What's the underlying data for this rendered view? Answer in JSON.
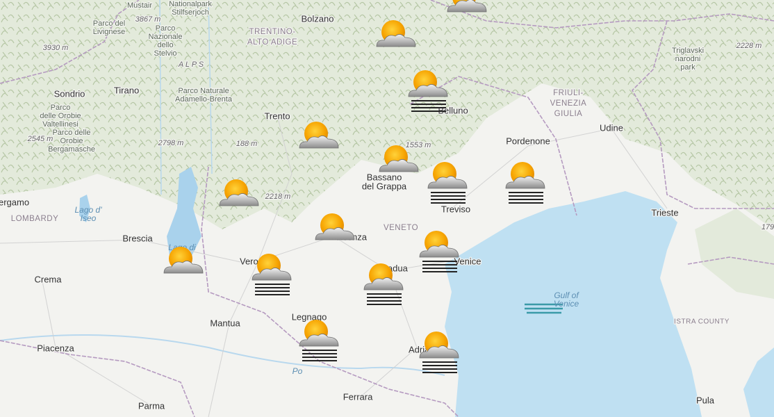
{
  "labels": [
    {
      "text": "Mustair"
    },
    {
      "lines": [
        "Nationalpark",
        "Stilfserjoch"
      ]
    },
    {
      "text": "3867 m"
    },
    {
      "lines": [
        "Parco del",
        "Livignese"
      ]
    },
    {
      "lines": [
        "Parco",
        "Nazionale",
        "dello",
        "Stelvio"
      ]
    },
    {
      "text": "Bolzano"
    },
    {
      "lines": [
        "TRENTINO-",
        "ALTO ADIGE"
      ]
    },
    {
      "text": "3930 m"
    },
    {
      "text": "A L P S"
    },
    {
      "text": "2228 m"
    },
    {
      "lines": [
        "Triglavski",
        "narodni",
        "park"
      ]
    },
    {
      "text": "Sondrio"
    },
    {
      "text": "Tirano"
    },
    {
      "lines": [
        "Parco Naturale",
        "Adamello-Brenta"
      ]
    },
    {
      "lines": [
        "FRIULI-",
        "VENEZIA",
        "GIULIA"
      ]
    },
    {
      "lines": [
        "Parco",
        "delle Orobie",
        "Valtellinesi"
      ]
    },
    {
      "text": "Trento"
    },
    {
      "text": "Belluno"
    },
    {
      "text": "Udine"
    },
    {
      "text": "2545 m"
    },
    {
      "lines": [
        "Parco delle",
        "Orobie",
        "Bergamasche"
      ]
    },
    {
      "text": "2798 m"
    },
    {
      "text": "188 m"
    },
    {
      "text": "1553 m"
    },
    {
      "text": "Pordenone"
    },
    {
      "lines": [
        "Bassano",
        "del Grappa"
      ]
    },
    {
      "text": "2218 m"
    },
    {
      "text": "ergamo"
    },
    {
      "lines": [
        "Lago d'",
        "Iseo"
      ]
    },
    {
      "text": "LOMBARDY"
    },
    {
      "text": "Treviso"
    },
    {
      "text": "Trieste"
    },
    {
      "text": "VENETO"
    },
    {
      "text": "Brescia"
    },
    {
      "text": "Lago di"
    },
    {
      "text": "Vicenza"
    },
    {
      "text": "Venice"
    },
    {
      "text": "179"
    },
    {
      "text": "Verona"
    },
    {
      "text": "Padua"
    },
    {
      "text": "Crema"
    },
    {
      "lines": [
        "Gulf of",
        "Venice"
      ]
    },
    {
      "text": "ISTRA COUNTY"
    },
    {
      "text": "Mantua"
    },
    {
      "text": "Legnago"
    },
    {
      "text": "Piacenza"
    },
    {
      "text": "Po"
    },
    {
      "text": "Parma"
    },
    {
      "text": "Ferrara"
    },
    {
      "text": "Adria"
    },
    {
      "text": "Pula"
    }
  ]
}
